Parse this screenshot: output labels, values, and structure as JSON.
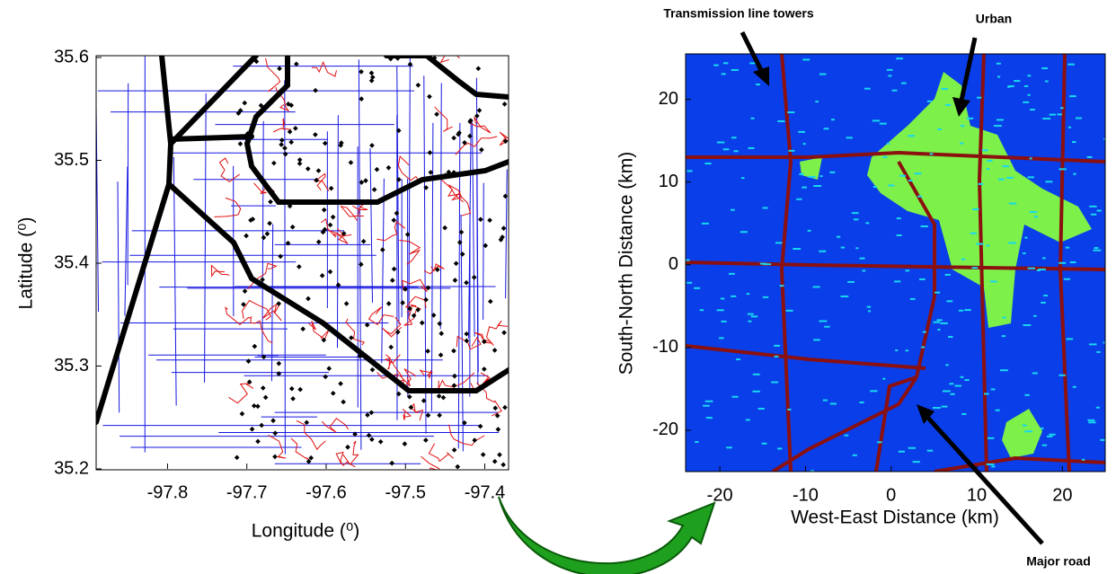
{
  "chart_data": [
    {
      "type": "map",
      "x_label": "Longitude (⁰)",
      "y_label": "Latitude (⁰)",
      "xlim": [
        -97.89,
        -97.37
      ],
      "ylim": [
        35.2,
        35.6
      ],
      "xticks": [
        -97.8,
        -97.7,
        -97.6,
        -97.5,
        -97.4
      ],
      "yticks": [
        35.2,
        35.3,
        35.4,
        35.5,
        35.6
      ]
    },
    {
      "type": "map",
      "x_label": "West-East Distance (km)",
      "y_label": "South-North Distance (km)",
      "xlim": [
        -24,
        25
      ],
      "ylim": [
        -25,
        25.5
      ],
      "xticks": [
        -20,
        -10,
        0,
        10,
        20
      ],
      "yticks": [
        -20,
        -10,
        0,
        10,
        20
      ],
      "annotations": [
        "Transmission line towers",
        "Urban",
        "Major road"
      ]
    }
  ]
}
